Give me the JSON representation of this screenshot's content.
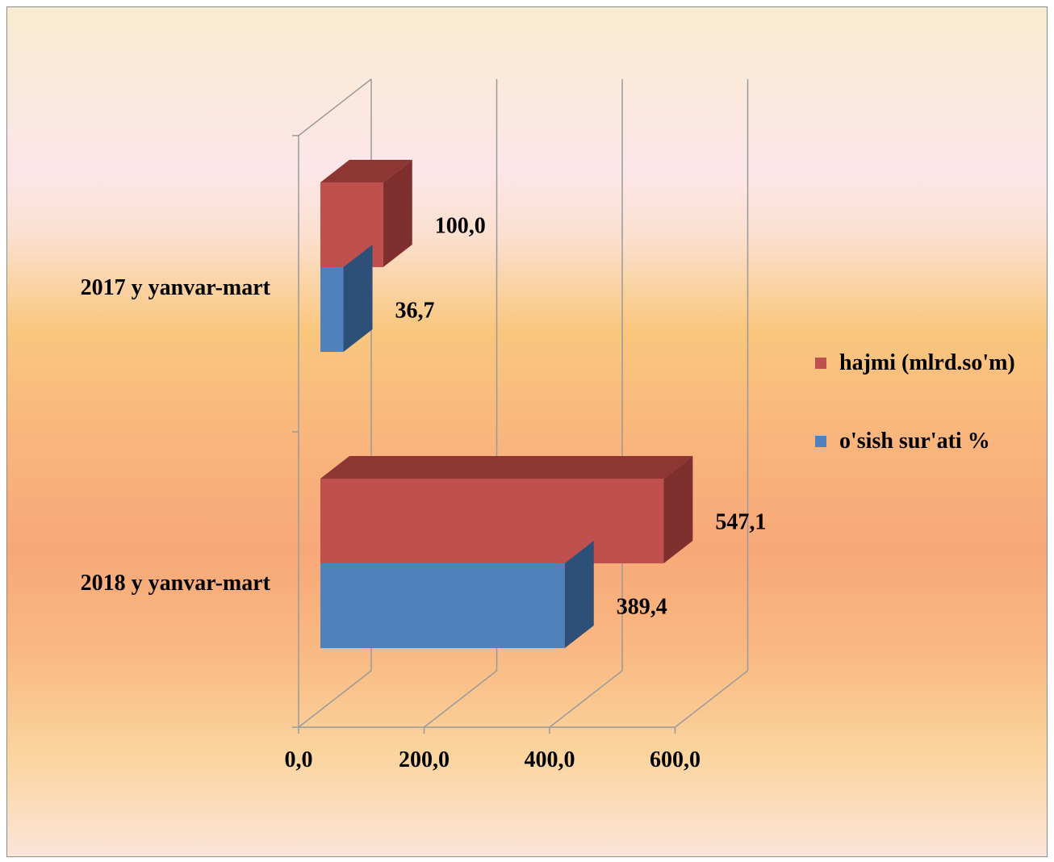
{
  "chart_data": {
    "type": "bar",
    "orientation": "horizontal",
    "style": "3d-clustered",
    "categories": [
      "2017 y  yanvar-mart",
      "2018 y  yanvar-mart"
    ],
    "series": [
      {
        "name": "hajmi (mlrd.so'm)",
        "values": [
          100.0,
          547.1
        ],
        "labels": [
          "100,0",
          "547,1"
        ],
        "color": "#c0504d",
        "side_color": "#7f2f2d",
        "top_color": "#8e3633"
      },
      {
        "name": "o'sish sur'ati %",
        "values": [
          36.7,
          389.4
        ],
        "labels": [
          "36,7",
          "389,4"
        ],
        "color": "#4f81bd",
        "side_color": "#2e5078"
      }
    ],
    "x_ticks": [
      "0,0",
      "200,0",
      "400,0",
      "600,0"
    ],
    "xlim": [
      0,
      600
    ],
    "grid": true,
    "legend_position": "right"
  }
}
